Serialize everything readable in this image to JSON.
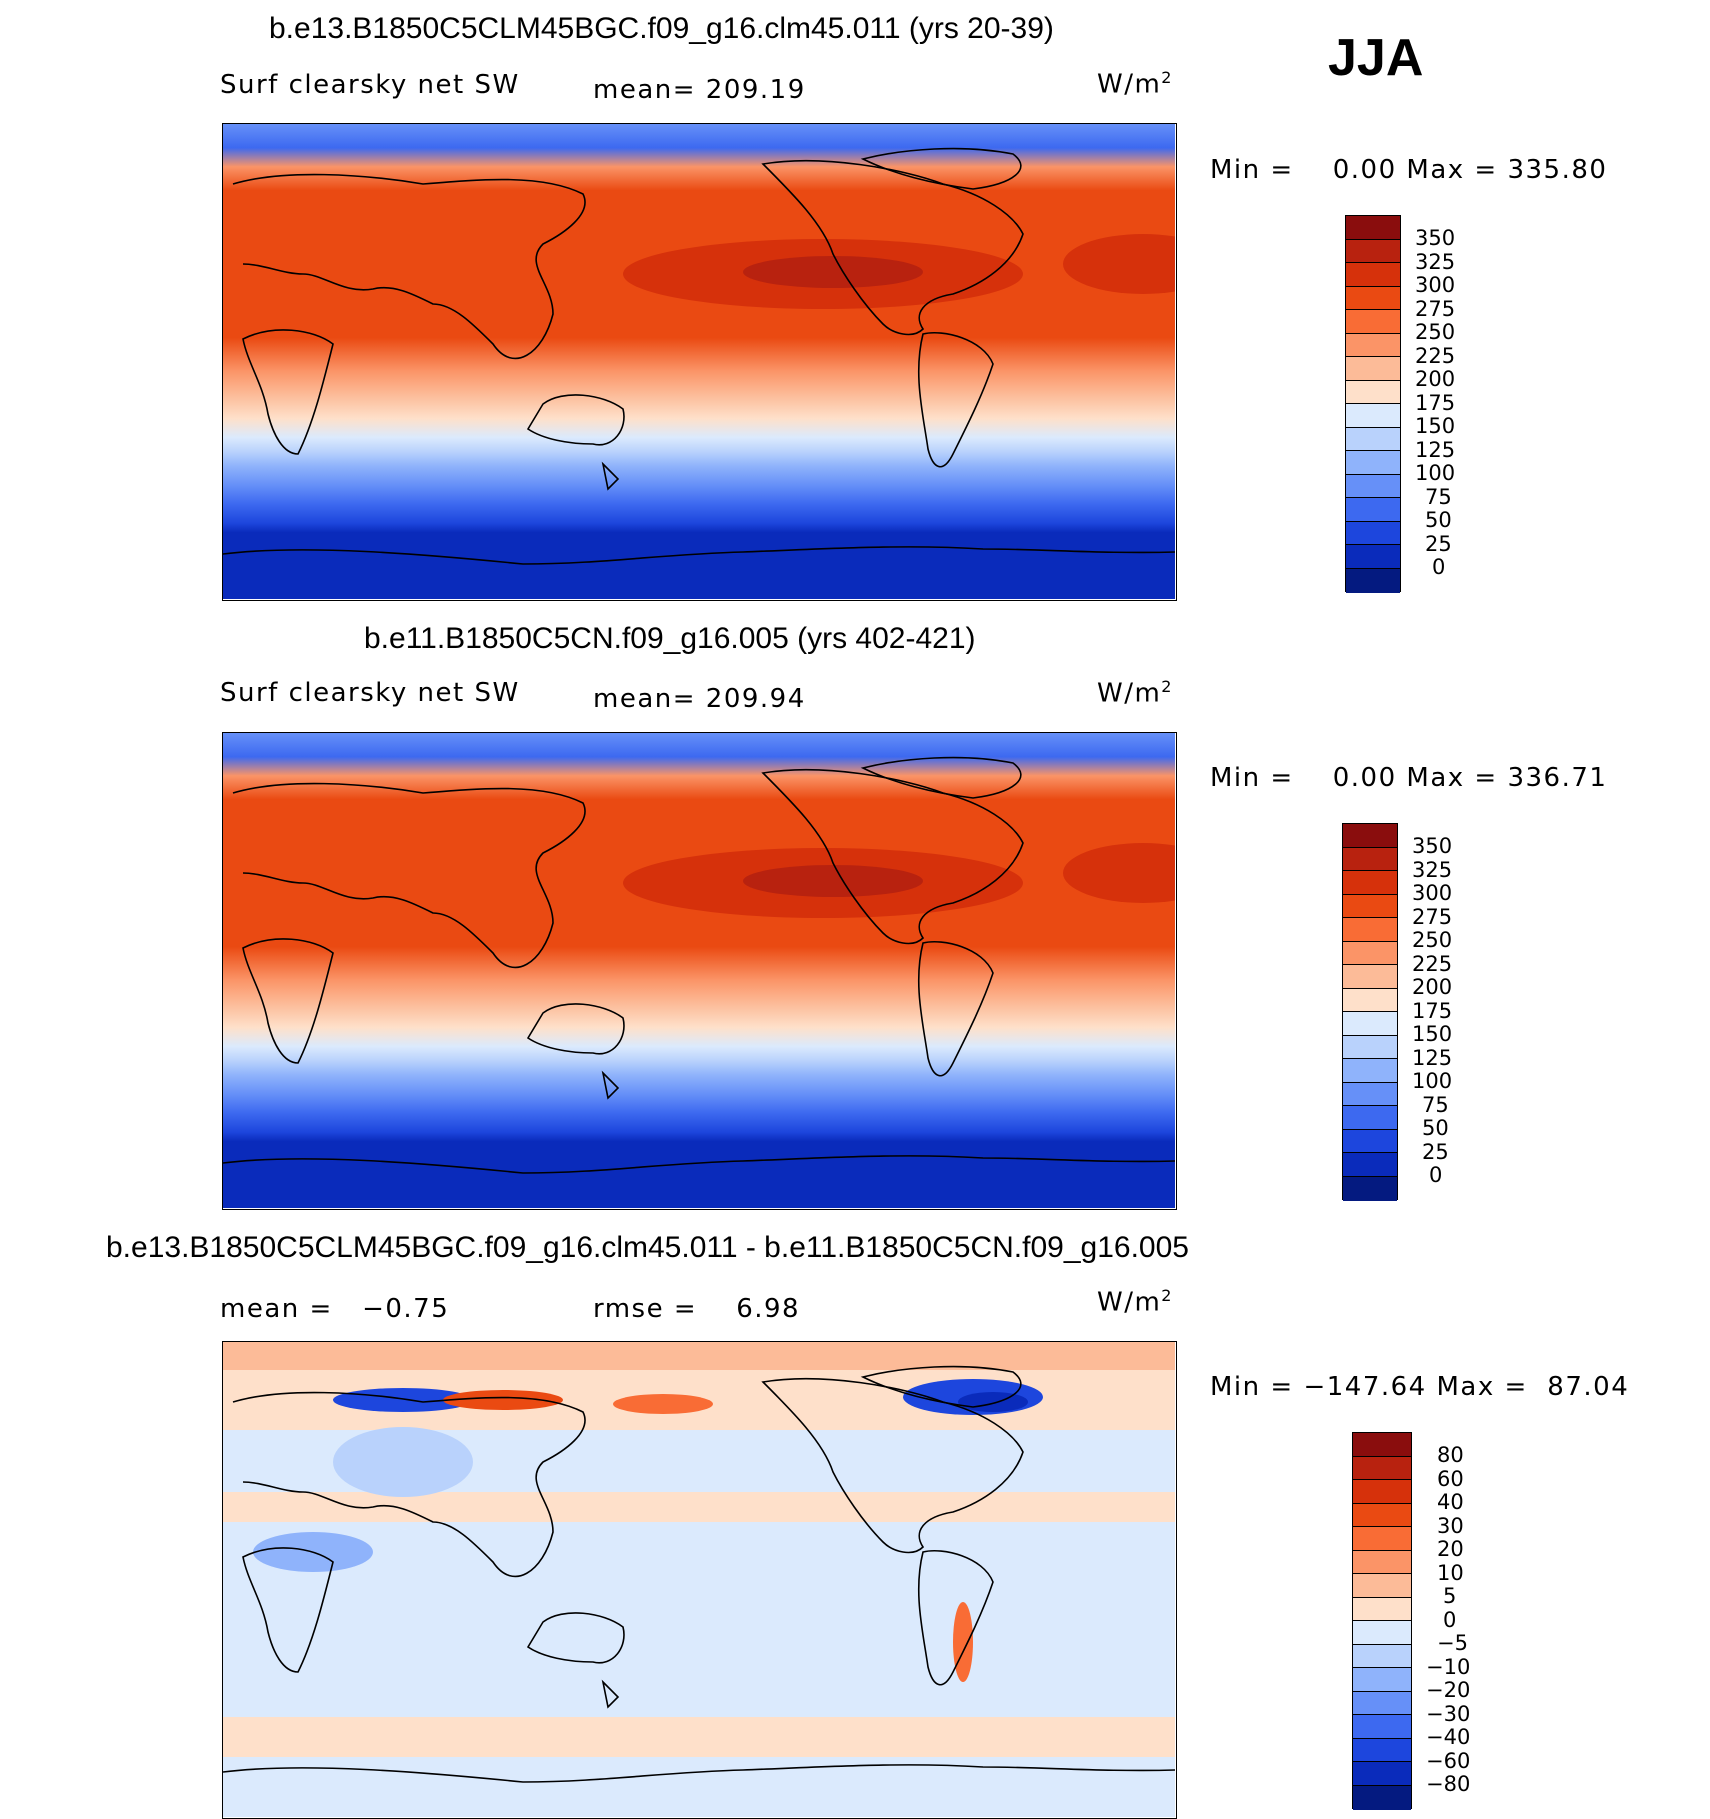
{
  "season": "JJA",
  "units_base": "W/m",
  "units_exp": "2",
  "panels": [
    {
      "title": "b.e13.B1850C5CLM45BGC.f09_g16.clm45.011 (yrs 20-39)",
      "variable": "Surf clearsky net SW",
      "stat1": "mean= 209.19",
      "minmax": "Min =    0.00 Max = 335.80",
      "colorbar": {
        "labels": [
          "350",
          "325",
          "300",
          "275",
          "250",
          "225",
          "200",
          "175",
          "150",
          "125",
          "100",
          "75",
          "50",
          "25",
          "0"
        ],
        "colors": [
          "#8a0d0d",
          "#b8220f",
          "#d6310b",
          "#ea4a12",
          "#f96c35",
          "#fb9467",
          "#fcbb98",
          "#fee0ca",
          "#dbeafd",
          "#b9d2fc",
          "#8fb3fb",
          "#6690f8",
          "#3d69f0",
          "#1d46dd",
          "#0a2bbb",
          "#041a80"
        ]
      }
    },
    {
      "title": "b.e11.B1850C5CN.f09_g16.005 (yrs 402-421)",
      "variable": "Surf clearsky net SW",
      "stat1": "mean= 209.94",
      "minmax": "Min =    0.00 Max = 336.71",
      "colorbar": {
        "labels": [
          "350",
          "325",
          "300",
          "275",
          "250",
          "225",
          "200",
          "175",
          "150",
          "125",
          "100",
          "75",
          "50",
          "25",
          "0"
        ],
        "colors": [
          "#8a0d0d",
          "#b8220f",
          "#d6310b",
          "#ea4a12",
          "#f96c35",
          "#fb9467",
          "#fcbb98",
          "#fee0ca",
          "#dbeafd",
          "#b9d2fc",
          "#8fb3fb",
          "#6690f8",
          "#3d69f0",
          "#1d46dd",
          "#0a2bbb",
          "#041a80"
        ]
      }
    },
    {
      "title": "b.e13.B1850C5CLM45BGC.f09_g16.clm45.011 - b.e11.B1850C5CN.f09_g16.005",
      "stat1": "mean =   −0.75",
      "stat2": "rmse =    6.98",
      "minmax": "Min = −147.64 Max =  87.04",
      "colorbar": {
        "labels": [
          "80",
          "60",
          "40",
          "30",
          "20",
          "10",
          "5",
          "0",
          "−5",
          "−10",
          "−20",
          "−30",
          "−40",
          "−60",
          "−80"
        ],
        "colors": [
          "#8a0d0d",
          "#b8220f",
          "#d6310b",
          "#ea4a12",
          "#f96c35",
          "#fb9467",
          "#fcbb98",
          "#fee0ca",
          "#dbeafd",
          "#b9d2fc",
          "#8fb3fb",
          "#6690f8",
          "#3d69f0",
          "#1d46dd",
          "#0a2bbb",
          "#041a80"
        ]
      }
    }
  ]
}
